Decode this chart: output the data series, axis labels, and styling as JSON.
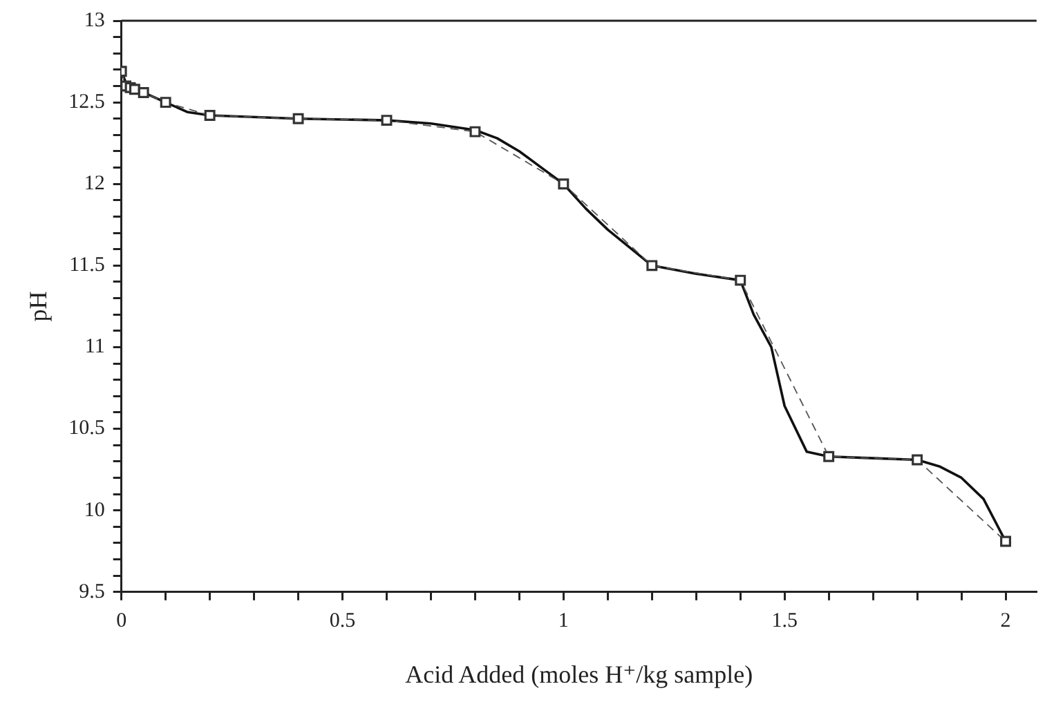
{
  "chart_data": {
    "type": "line",
    "xlabel": "Acid Added (moles H⁺/kg sample)",
    "ylabel": "pH",
    "series": [
      {
        "color": "#555555",
        "line_style": "dashed",
        "marker": "square",
        "x": [
          0,
          0.01,
          0.02,
          0.03,
          0.05,
          0.1,
          0.2,
          0.4,
          0.6,
          0.8,
          1.0,
          1.2,
          1.4,
          1.6,
          1.8,
          2.0
        ],
        "values": [
          12.69,
          12.6,
          12.59,
          12.58,
          12.56,
          12.5,
          12.42,
          12.4,
          12.39,
          12.32,
          12.0,
          11.5,
          11.41,
          10.33,
          10.31,
          9.81
        ]
      },
      {
        "type": "line",
        "color": "#111111",
        "line_style": "solid",
        "marker": "none",
        "x": [
          0,
          0.01,
          0.05,
          0.1,
          0.15,
          0.2,
          0.4,
          0.6,
          0.7,
          0.8,
          0.85,
          0.9,
          0.95,
          1.0,
          1.05,
          1.1,
          1.2,
          1.3,
          1.4,
          1.43,
          1.47,
          1.5,
          1.55,
          1.6,
          1.7,
          1.8,
          1.85,
          1.9,
          1.95,
          2.0
        ],
        "values": [
          12.69,
          12.62,
          12.56,
          12.5,
          12.44,
          12.42,
          12.4,
          12.39,
          12.37,
          12.33,
          12.28,
          12.2,
          12.1,
          12.0,
          11.85,
          11.72,
          11.5,
          11.45,
          11.41,
          11.2,
          11.0,
          10.64,
          10.36,
          10.33,
          10.32,
          10.31,
          10.27,
          10.2,
          10.07,
          9.81
        ]
      }
    ],
    "xlim": [
      0,
      2.07
    ],
    "xticks": [
      0,
      {
        "value": 0.1,
        "label": null
      },
      {
        "value": 0.2,
        "label": null
      },
      {
        "value": 0.3,
        "label": null
      },
      {
        "value": 0.4,
        "label": null
      },
      0.5,
      {
        "value": 0.6,
        "label": null
      },
      {
        "value": 0.7,
        "label": null
      },
      {
        "value": 0.8,
        "label": null
      },
      {
        "value": 0.9,
        "label": null
      },
      1,
      {
        "value": 1.1,
        "label": null
      },
      {
        "value": 1.2,
        "label": null
      },
      {
        "value": 1.3,
        "label": null
      },
      {
        "value": 1.4,
        "label": null
      },
      1.5,
      {
        "value": 1.6,
        "label": null
      },
      {
        "value": 1.7,
        "label": null
      },
      {
        "value": 1.8,
        "label": null
      },
      {
        "value": 1.9,
        "label": null
      },
      2
    ],
    "ylim": [
      9.5,
      13
    ],
    "yticks": [
      9.5,
      {
        "value": 9.6,
        "label": null
      },
      {
        "value": 9.7,
        "label": null
      },
      {
        "value": 9.8,
        "label": null
      },
      {
        "value": 9.9,
        "label": null
      },
      10,
      {
        "value": 10.1,
        "label": null
      },
      {
        "value": 10.2,
        "label": null
      },
      {
        "value": 10.3,
        "label": null
      },
      {
        "value": 10.4,
        "label": null
      },
      10.5,
      {
        "value": 10.6,
        "label": null
      },
      {
        "value": 10.7,
        "label": null
      },
      {
        "value": 10.8,
        "label": null
      },
      {
        "value": 10.9,
        "label": null
      },
      11,
      {
        "value": 11.1,
        "label": null
      },
      {
        "value": 11.2,
        "label": null
      },
      {
        "value": 11.3,
        "label": null
      },
      {
        "value": 11.4,
        "label": null
      },
      11.5,
      {
        "value": 11.6,
        "label": null
      },
      {
        "value": 11.7,
        "label": null
      },
      {
        "value": 11.8,
        "label": null
      },
      {
        "value": 11.9,
        "label": null
      },
      12,
      {
        "value": 12.1,
        "label": null
      },
      {
        "value": 12.2,
        "label": null
      },
      {
        "value": 12.3,
        "label": null
      },
      {
        "value": 12.4,
        "label": null
      },
      12.5,
      {
        "value": 12.6,
        "label": null
      },
      {
        "value": 12.7,
        "label": null
      },
      {
        "value": 12.8,
        "label": null
      },
      {
        "value": 12.9,
        "label": null
      },
      13
    ],
    "grid": false,
    "legend": false
  }
}
